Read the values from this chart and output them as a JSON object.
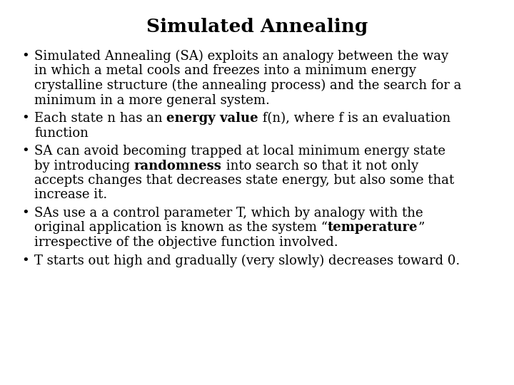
{
  "title": "Simulated Annealing",
  "background_color": "#ffffff",
  "title_fontsize": 19,
  "body_fontsize": 13.0,
  "title_font": "DejaVu Serif",
  "body_font": "DejaVu Serif",
  "bullet_lines": [
    {
      "lines": [
        [
          {
            "text": "Simulated Annealing (SA) exploits an analogy between the way",
            "bold": false
          }
        ],
        [
          {
            "text": "in which a metal cools and freezes into a minimum energy",
            "bold": false
          }
        ],
        [
          {
            "text": "crystalline structure (the annealing process) and the search for a",
            "bold": false
          }
        ],
        [
          {
            "text": "minimum in a more general system.",
            "bold": false
          }
        ]
      ]
    },
    {
      "lines": [
        [
          {
            "text": "Each state n has an ",
            "bold": false
          },
          {
            "text": "energy value",
            "bold": true
          },
          {
            "text": " f(n), where f is an evaluation",
            "bold": false
          }
        ],
        [
          {
            "text": "function",
            "bold": false
          }
        ]
      ]
    },
    {
      "lines": [
        [
          {
            "text": "SA can avoid becoming trapped at local minimum energy state",
            "bold": false
          }
        ],
        [
          {
            "text": "by introducing ",
            "bold": false
          },
          {
            "text": "randomness",
            "bold": true
          },
          {
            "text": " into search so that it not only",
            "bold": false
          }
        ],
        [
          {
            "text": "accepts changes that decreases state energy, but also some that",
            "bold": false
          }
        ],
        [
          {
            "text": "increase it.",
            "bold": false
          }
        ]
      ]
    },
    {
      "lines": [
        [
          {
            "text": "SAs use a a control parameter T, which by analogy with the",
            "bold": false
          }
        ],
        [
          {
            "text": "original application is known as the system “",
            "bold": false
          },
          {
            "text": "temperature",
            "bold": true
          },
          {
            "text": "”",
            "bold": false
          }
        ],
        [
          {
            "text": "irrespective of the objective function involved.",
            "bold": false
          }
        ]
      ]
    },
    {
      "lines": [
        [
          {
            "text": "T starts out high and gradually (very slowly) decreases toward 0.",
            "bold": false
          }
        ]
      ]
    }
  ]
}
